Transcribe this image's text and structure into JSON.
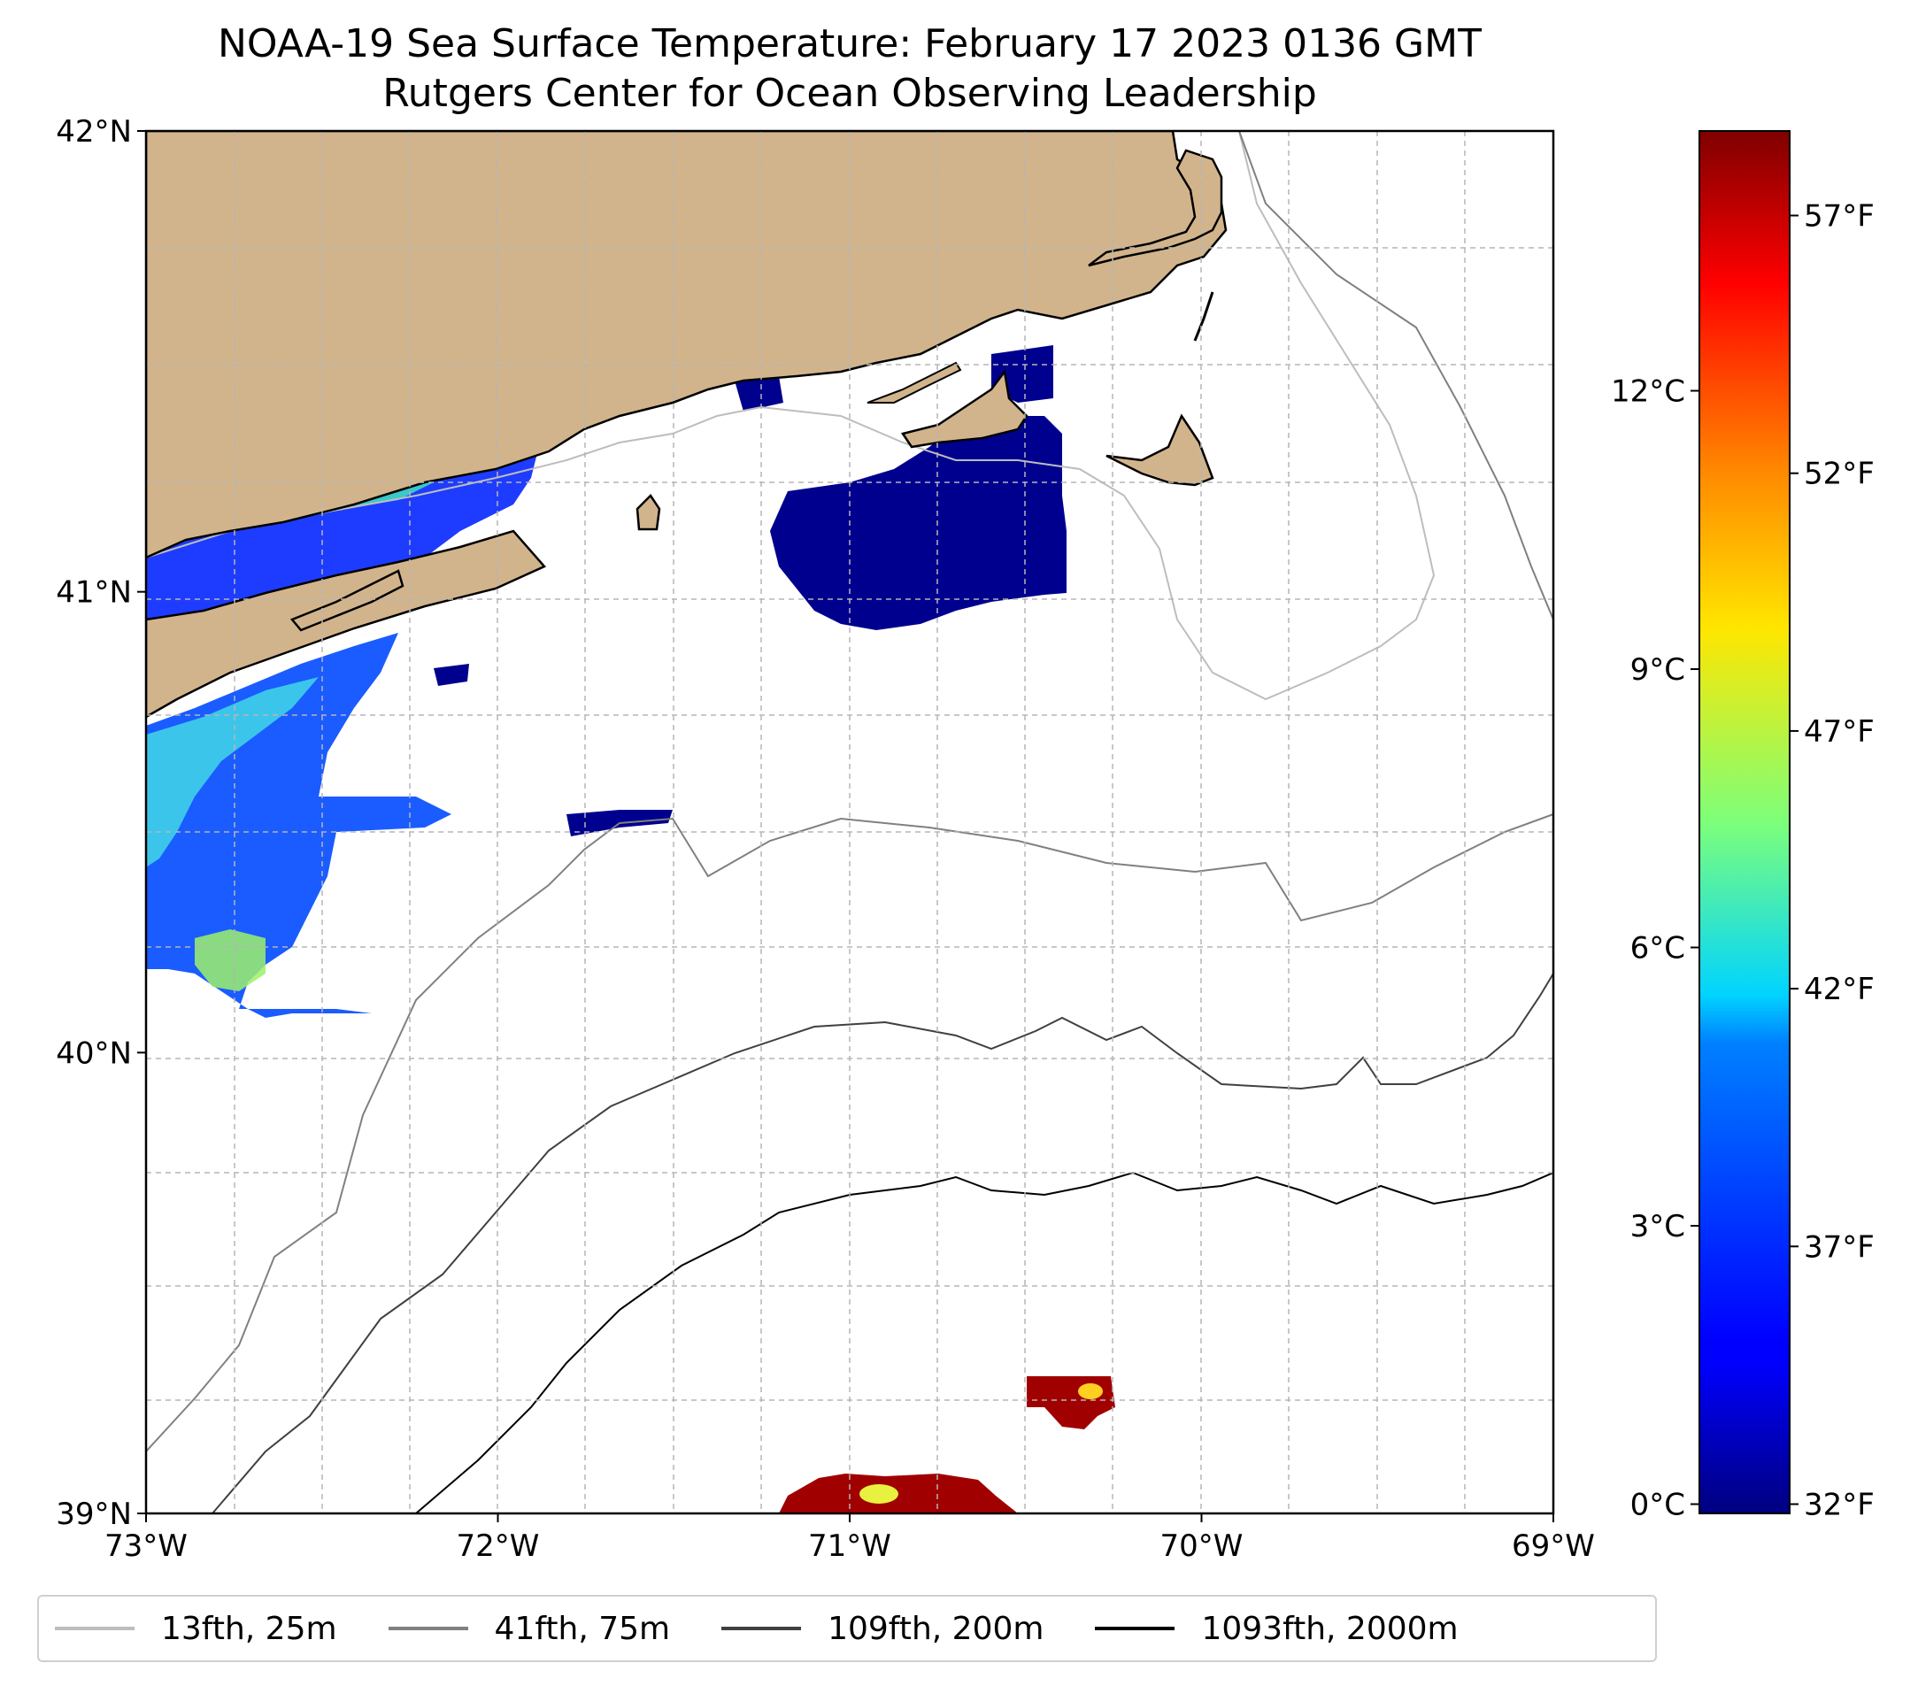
{
  "title": {
    "line1": "NOAA-19 Sea Surface Temperature: February 17 2023 0136 GMT",
    "line2": "Rutgers Center for Ocean Observing Leadership"
  },
  "map": {
    "lon_range": [
      -73,
      -69
    ],
    "lat_range": [
      39,
      42
    ],
    "lon_ticks": [
      -73,
      -72,
      -71,
      -70,
      -69
    ],
    "lon_tick_labels": [
      "73°W",
      "72°W",
      "71°W",
      "70°W",
      "69°W"
    ],
    "lat_ticks": [
      39,
      40,
      41,
      42
    ],
    "lat_tick_labels": [
      "39°N",
      "40°N",
      "41°N",
      "42°N"
    ],
    "grid": true,
    "land_color": "#d2b48c",
    "coast_color": "#000000"
  },
  "colorbar": {
    "colormap": "jet",
    "celsius_ticks": [
      0,
      3,
      6,
      9,
      12
    ],
    "celsius_labels": [
      "0°C",
      "3°C",
      "6°C",
      "9°C",
      "12°C"
    ],
    "fahrenheit_ticks": [
      32,
      37,
      42,
      47,
      52,
      57
    ],
    "fahrenheit_labels": [
      "32°F",
      "37°F",
      "42°F",
      "47°F",
      "52°F",
      "57°F"
    ],
    "range_celsius": [
      -0.1,
      14.8
    ]
  },
  "legend": {
    "placement": "bottom",
    "items": [
      {
        "label": "13fth, 25m",
        "color": "#bdbdbd"
      },
      {
        "label": "41fth, 75m",
        "color": "#808080"
      },
      {
        "label": "109fth, 200m",
        "color": "#404040"
      },
      {
        "label": "1093fth, 2000m",
        "color": "#000000"
      }
    ]
  }
}
